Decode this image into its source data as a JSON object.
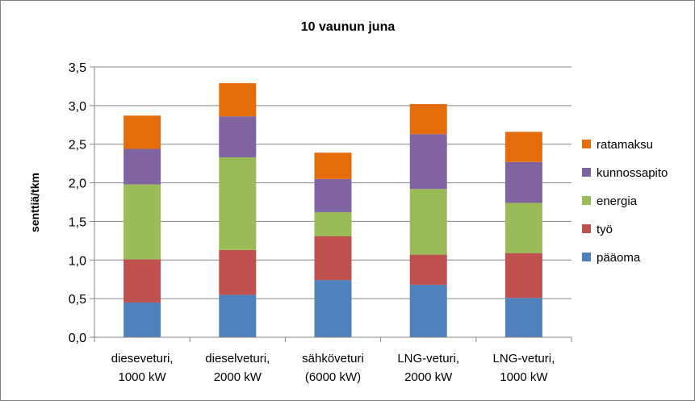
{
  "chart_data": {
    "type": "bar",
    "stacked": true,
    "title": "10 vaunun juna",
    "xlabel": "",
    "ylabel": "senttiä/tkm",
    "ylim": [
      0,
      3.5
    ],
    "ytick_step": 0.5,
    "ytick_labels": [
      "0,0",
      "0,5",
      "1,0",
      "1,5",
      "2,0",
      "2,5",
      "3,0",
      "3,5"
    ],
    "grid": true,
    "legend_position": "right",
    "categories": [
      [
        "dieseveturi,",
        "1000 kW"
      ],
      [
        "dieselveturi,",
        "2000 kW"
      ],
      [
        "sähköveturi",
        "(6000 kW)"
      ],
      [
        "LNG-veturi,",
        "2000 kW"
      ],
      [
        "LNG-veturi,",
        "1000 kW"
      ]
    ],
    "series": [
      {
        "name": "pääoma",
        "color": "#4F81BD",
        "values": [
          0.45,
          0.55,
          0.74,
          0.68,
          0.51
        ]
      },
      {
        "name": "työ",
        "color": "#C0504D",
        "values": [
          0.56,
          0.58,
          0.57,
          0.39,
          0.58
        ]
      },
      {
        "name": "energia",
        "color": "#9BBB59",
        "values": [
          0.97,
          1.2,
          0.31,
          0.85,
          0.65
        ]
      },
      {
        "name": "kunnossapito",
        "color": "#8064A2",
        "values": [
          0.46,
          0.53,
          0.43,
          0.71,
          0.53
        ]
      },
      {
        "name": "ratamaksu",
        "color": "#E46C0A",
        "values": [
          0.43,
          0.43,
          0.34,
          0.39,
          0.39
        ]
      }
    ]
  }
}
